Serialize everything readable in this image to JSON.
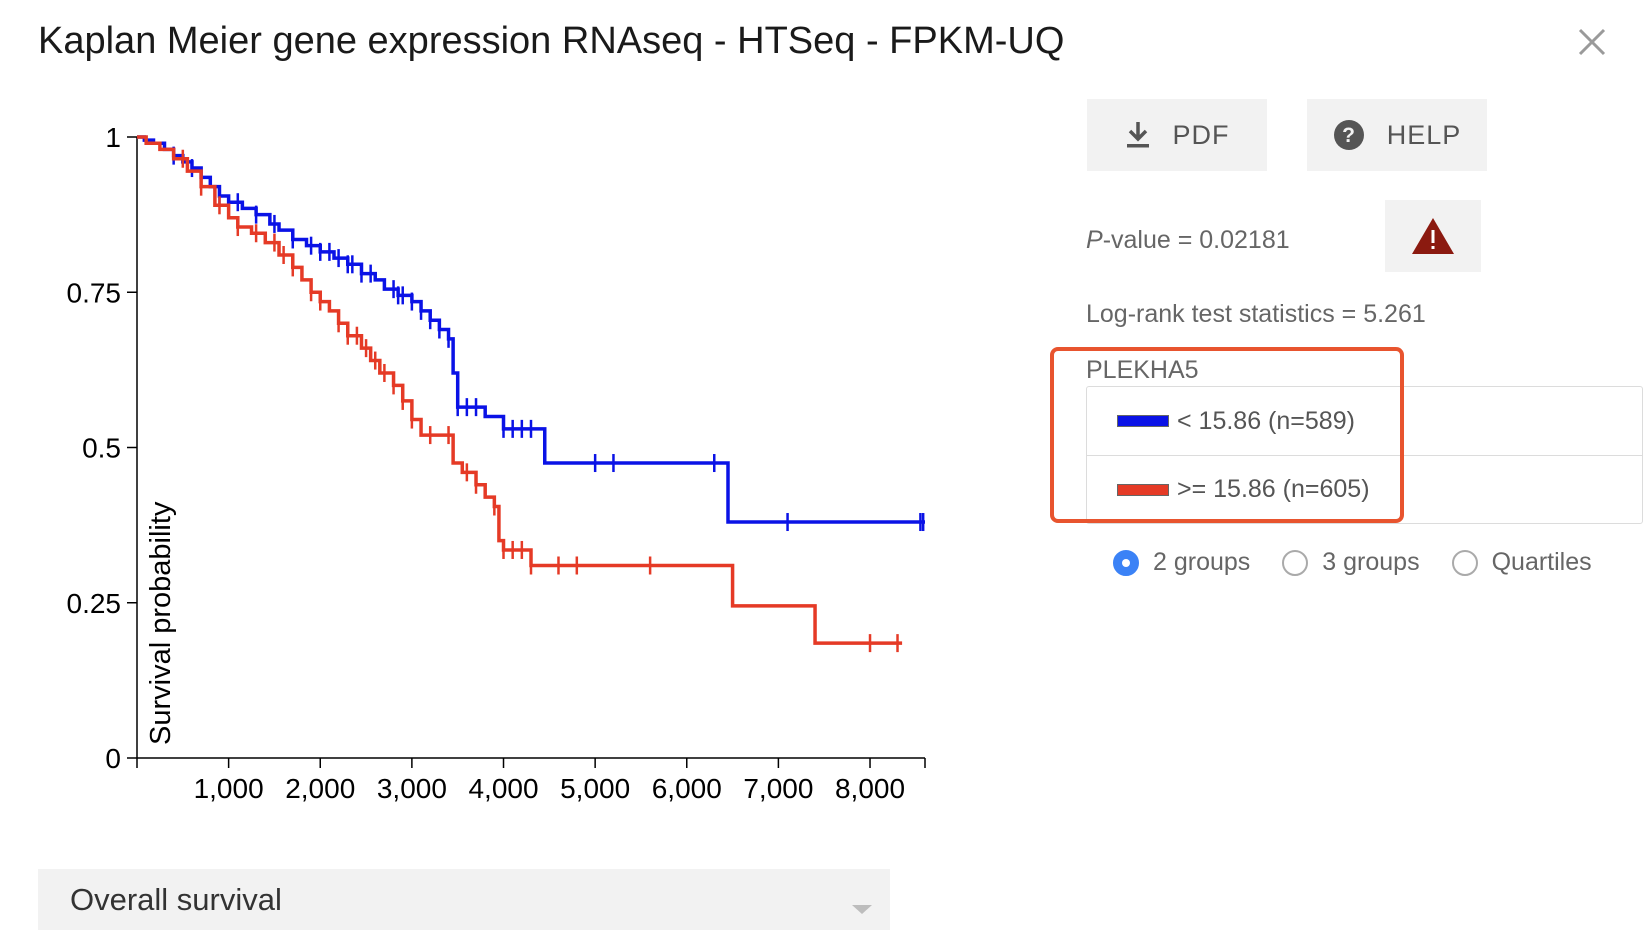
{
  "header": {
    "title": "Kaplan Meier gene expression RNAseq - HTSeq - FPKM-UQ",
    "close_icon": "close-icon"
  },
  "toolbar": {
    "pdf_label": "PDF",
    "help_label": "HELP",
    "pdf_icon": "download-icon",
    "help_icon": "question-circle-icon",
    "warning_icon": "warning-triangle-icon"
  },
  "stats": {
    "pvalue_label": "P",
    "pvalue_rest": "-value = 0.02181",
    "logrank": "Log-rank test statistics = 5.261"
  },
  "legend": {
    "gene": "PLEKHA5",
    "items": [
      {
        "label": "< 15.86 (n=589)",
        "color": "#0a12e6"
      },
      {
        "label": ">= 15.86 (n=605)",
        "color": "#e53a26"
      }
    ]
  },
  "grouping": {
    "options": [
      "2 groups",
      "3 groups",
      "Quartiles"
    ],
    "selected": "2 groups"
  },
  "survival_select": {
    "value": "Overall survival"
  },
  "chart_data": {
    "type": "line",
    "ylabel": "Survival probability",
    "xlabel": "",
    "xlim": [
      0,
      8600
    ],
    "ylim": [
      0,
      1
    ],
    "x_ticks": [
      1000,
      2000,
      3000,
      4000,
      5000,
      6000,
      7000,
      8000
    ],
    "x_tick_labels": [
      "1,000",
      "2,000",
      "3,000",
      "4,000",
      "5,000",
      "6,000",
      "7,000",
      "8,000"
    ],
    "y_ticks": [
      0,
      0.25,
      0.5,
      0.75,
      1
    ],
    "y_tick_labels": [
      "0",
      "0.25",
      "0.5",
      "0.75",
      "1"
    ],
    "series": [
      {
        "name": "< 15.86 (n=589)",
        "color": "#0a12e6",
        "steps": [
          [
            0,
            1
          ],
          [
            80,
            0.995
          ],
          [
            180,
            0.99
          ],
          [
            300,
            0.98
          ],
          [
            400,
            0.97
          ],
          [
            500,
            0.96
          ],
          [
            600,
            0.95
          ],
          [
            700,
            0.935
          ],
          [
            800,
            0.92
          ],
          [
            900,
            0.905
          ],
          [
            1000,
            0.895
          ],
          [
            1150,
            0.885
          ],
          [
            1300,
            0.875
          ],
          [
            1450,
            0.86
          ],
          [
            1550,
            0.85
          ],
          [
            1700,
            0.835
          ],
          [
            1850,
            0.825
          ],
          [
            2000,
            0.815
          ],
          [
            2150,
            0.805
          ],
          [
            2300,
            0.795
          ],
          [
            2450,
            0.78
          ],
          [
            2600,
            0.77
          ],
          [
            2700,
            0.755
          ],
          [
            2850,
            0.745
          ],
          [
            3000,
            0.735
          ],
          [
            3100,
            0.72
          ],
          [
            3200,
            0.705
          ],
          [
            3300,
            0.69
          ],
          [
            3400,
            0.675
          ],
          [
            3450,
            0.62
          ],
          [
            3500,
            0.565
          ],
          [
            3800,
            0.55
          ],
          [
            4000,
            0.53
          ],
          [
            4450,
            0.475
          ],
          [
            6450,
            0.38
          ],
          [
            8600,
            0.38
          ]
        ],
        "censor_x": [
          400,
          600,
          900,
          1100,
          1300,
          1500,
          1700,
          1900,
          2000,
          2100,
          2200,
          2300,
          2350,
          2450,
          2550,
          2800,
          2850,
          2900,
          3000,
          3100,
          3200,
          3300,
          3400,
          3500,
          3600,
          3700,
          4000,
          4100,
          4200,
          4300,
          5000,
          5200,
          6300,
          7100,
          8550,
          8580
        ]
      },
      {
        "name": ">= 15.86 (n=605)",
        "color": "#e53a26",
        "steps": [
          [
            0,
            1
          ],
          [
            100,
            0.99
          ],
          [
            250,
            0.98
          ],
          [
            400,
            0.965
          ],
          [
            550,
            0.945
          ],
          [
            700,
            0.92
          ],
          [
            850,
            0.89
          ],
          [
            1000,
            0.87
          ],
          [
            1100,
            0.855
          ],
          [
            1250,
            0.845
          ],
          [
            1400,
            0.83
          ],
          [
            1550,
            0.81
          ],
          [
            1700,
            0.79
          ],
          [
            1800,
            0.77
          ],
          [
            1900,
            0.75
          ],
          [
            2000,
            0.735
          ],
          [
            2100,
            0.72
          ],
          [
            2200,
            0.7
          ],
          [
            2300,
            0.68
          ],
          [
            2450,
            0.66
          ],
          [
            2550,
            0.64
          ],
          [
            2650,
            0.62
          ],
          [
            2800,
            0.6
          ],
          [
            2900,
            0.575
          ],
          [
            3000,
            0.545
          ],
          [
            3100,
            0.52
          ],
          [
            3450,
            0.475
          ],
          [
            3550,
            0.46
          ],
          [
            3700,
            0.44
          ],
          [
            3800,
            0.42
          ],
          [
            3900,
            0.405
          ],
          [
            3950,
            0.35
          ],
          [
            4000,
            0.335
          ],
          [
            4300,
            0.31
          ],
          [
            6500,
            0.245
          ],
          [
            7400,
            0.185
          ],
          [
            8350,
            0.185
          ]
        ],
        "censor_x": [
          500,
          700,
          900,
          1100,
          1300,
          1500,
          1600,
          1700,
          1900,
          2000,
          2200,
          2300,
          2400,
          2500,
          2600,
          2700,
          2800,
          2900,
          3000,
          3200,
          3400,
          3600,
          3700,
          3900,
          4000,
          4100,
          4200,
          4300,
          4600,
          4800,
          5600,
          8000,
          8300
        ]
      }
    ]
  }
}
